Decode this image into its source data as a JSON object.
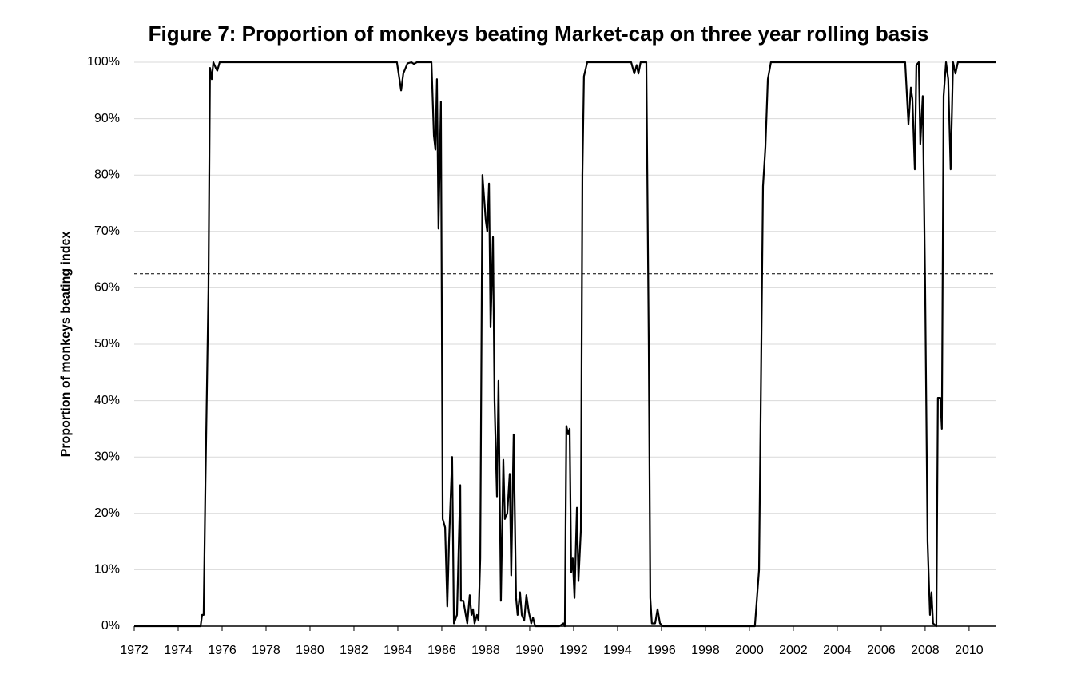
{
  "chart_data": {
    "type": "line",
    "title": "Figure 7: Proportion of monkeys beating Market-cap on three year rolling basis",
    "y_label": "Proportion of monkeys beating index",
    "xlim": [
      1972,
      2011.24
    ],
    "xticks": [
      1972,
      1974,
      1976,
      1978,
      1980,
      1982,
      1984,
      1986,
      1988,
      1990,
      1992,
      1994,
      1996,
      1998,
      2000,
      2002,
      2004,
      2006,
      2008,
      2010
    ],
    "ylim": [
      0,
      100
    ],
    "yticks": [
      {
        "value": 0,
        "label": "0%"
      },
      {
        "value": 10,
        "label": "10%"
      },
      {
        "value": 20,
        "label": "20%"
      },
      {
        "value": 30,
        "label": "30%"
      },
      {
        "value": 40,
        "label": "40%"
      },
      {
        "value": 50,
        "label": "50%"
      },
      {
        "value": 60,
        "label": "60%"
      },
      {
        "value": 70,
        "label": "70%"
      },
      {
        "value": 80,
        "label": "80%"
      },
      {
        "value": 90,
        "label": "90%"
      },
      {
        "value": 100,
        "label": "100%"
      }
    ],
    "grid": true,
    "reference_line": 62.5,
    "series": [
      {
        "color": "#000000",
        "x": [
          1972,
          1975.02,
          1975.09,
          1975.16,
          1975.24,
          1975.38,
          1975.45,
          1975.53,
          1975.6,
          1975.71,
          1975.78,
          1975.89,
          1983.96,
          1984.15,
          1984.25,
          1984.44,
          1984.62,
          1984.73,
          1984.87,
          1985.53,
          1985.64,
          1985.71,
          1985.78,
          1985.85,
          1985.96,
          1986.04,
          1986.15,
          1986.25,
          1986.33,
          1986.47,
          1986.55,
          1986.69,
          1986.84,
          1986.87,
          1986.98,
          1987.09,
          1987.16,
          1987.27,
          1987.35,
          1987.42,
          1987.49,
          1987.6,
          1987.67,
          1987.75,
          1987.85,
          1988,
          1988.07,
          1988.15,
          1988.22,
          1988.33,
          1988.4,
          1988.51,
          1988.58,
          1988.69,
          1988.8,
          1988.87,
          1988.98,
          1989.09,
          1989.16,
          1989.27,
          1989.38,
          1989.45,
          1989.56,
          1989.64,
          1989.75,
          1989.85,
          1989.96,
          1990.07,
          1990.15,
          1990.25,
          1991.35,
          1991.53,
          1991.6,
          1991.67,
          1991.75,
          1991.82,
          1991.89,
          1991.96,
          1992.04,
          1992.15,
          1992.22,
          1992.33,
          1992.4,
          1992.47,
          1992.62,
          1994.62,
          1994.76,
          1994.87,
          1994.95,
          1995.05,
          1995.31,
          1995.42,
          1995.49,
          1995.56,
          1995.71,
          1995.82,
          1995.93,
          1996.07,
          2000.25,
          2000.44,
          2000.62,
          2000.73,
          2000.84,
          2000.98,
          2007.09,
          2007.24,
          2007.35,
          2007.42,
          2007.53,
          2007.6,
          2007.71,
          2007.78,
          2007.89,
          2008,
          2008.11,
          2008.22,
          2008.29,
          2008.36,
          2008.51,
          2008.58,
          2008.69,
          2008.76,
          2008.84,
          2008.95,
          2009.05,
          2009.16,
          2009.27,
          2009.38,
          2009.49,
          2011.24
        ],
        "values": [
          0,
          0,
          2,
          2,
          25,
          60,
          99,
          97,
          100,
          99,
          98.5,
          100,
          100,
          95,
          98,
          99.8,
          100,
          99.7,
          100,
          100,
          87,
          84.5,
          97,
          70.5,
          93,
          19,
          17.5,
          3.5,
          15,
          30,
          0.5,
          2,
          25,
          4.5,
          4.5,
          2,
          0.5,
          5.5,
          2,
          3,
          0.5,
          2,
          1,
          12,
          80,
          72,
          70,
          78.5,
          53,
          69,
          40,
          23,
          43.5,
          4.5,
          29.5,
          19,
          20,
          27,
          9,
          34,
          5,
          2,
          6,
          2,
          1,
          5.5,
          2.5,
          0.5,
          1.5,
          0,
          0,
          0.5,
          0,
          35.5,
          34,
          35,
          9.5,
          12,
          5,
          21,
          8,
          17,
          80,
          97.5,
          100,
          100,
          98,
          99.5,
          98,
          100,
          100,
          50,
          5,
          0.5,
          0.5,
          3,
          0.5,
          0,
          0,
          10,
          78,
          85,
          97,
          100,
          100,
          89,
          95.5,
          93.5,
          81,
          99.5,
          100,
          85.5,
          94,
          60,
          15,
          2,
          6,
          0.5,
          0,
          40.5,
          40.5,
          35,
          94,
          100,
          97,
          81,
          100,
          98,
          100,
          100
        ]
      }
    ]
  }
}
